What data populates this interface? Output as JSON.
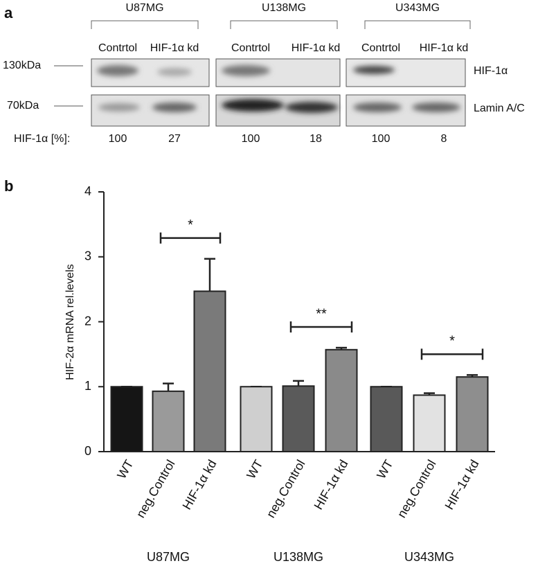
{
  "panel_a": {
    "label": "a",
    "cell_lines": [
      {
        "name": "U87MG",
        "lanes": [
          "Contrtol",
          "HIF-1α kd"
        ],
        "percents": [
          100,
          27
        ]
      },
      {
        "name": "U138MG",
        "lanes": [
          "Contrtol",
          "HIF-1α kd"
        ],
        "percents": [
          100,
          18
        ]
      },
      {
        "name": "U343MG",
        "lanes": [
          "Contrtol",
          "HIF-1α kd"
        ],
        "percents": [
          100,
          8
        ]
      }
    ],
    "markers": [
      "130kDa",
      "70kDa"
    ],
    "proteins": [
      "HIF-1α",
      "Lamin A/C"
    ],
    "percent_label": "HIF-1α [%]:"
  },
  "chart_data": {
    "type": "bar",
    "panel_label": "b",
    "y_label": "HIF-2α mRNA rel.levels",
    "categories": [
      "WT",
      "neg.Control",
      "HIF-1α kd",
      "WT",
      "neg.Control",
      "HIF-1α kd",
      "WT",
      "neg.Control",
      "HIF-1α kd"
    ],
    "groups": [
      "U87MG",
      "U138MG",
      "U343MG"
    ],
    "values": [
      1,
      0.93,
      2.47,
      1,
      1.01,
      1.57,
      1,
      0.87,
      1.15
    ],
    "errors": [
      0,
      0.12,
      0.5,
      0,
      0.08,
      0.03,
      0,
      0.03,
      0.03
    ],
    "colors": [
      "#151515",
      "#9a9a9a",
      "#7a7a7a",
      "#cfcfcf",
      "#5a5a5a",
      "#8a8a8a",
      "#595959",
      "#e2e2e2",
      "#8e8e8e"
    ],
    "annotations": [
      "*",
      "**",
      "*"
    ],
    "ylim": [
      0,
      4
    ],
    "yticks": [
      0,
      1,
      2,
      3,
      4
    ]
  }
}
